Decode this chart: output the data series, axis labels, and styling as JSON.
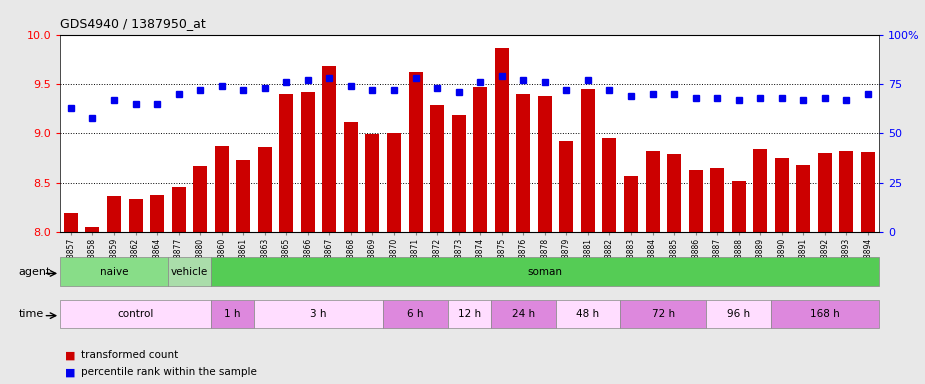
{
  "title": "GDS4940 / 1387950_at",
  "gsm_labels": [
    "GSM338857",
    "GSM338858",
    "GSM338859",
    "GSM338862",
    "GSM338864",
    "GSM338877",
    "GSM338880",
    "GSM338860",
    "GSM338861",
    "GSM338863",
    "GSM338865",
    "GSM338866",
    "GSM338867",
    "GSM338868",
    "GSM338869",
    "GSM338870",
    "GSM338871",
    "GSM338872",
    "GSM338873",
    "GSM338874",
    "GSM338875",
    "GSM338876",
    "GSM338878",
    "GSM338879",
    "GSM338881",
    "GSM338882",
    "GSM338883",
    "GSM338884",
    "GSM338885",
    "GSM338886",
    "GSM338887",
    "GSM338888",
    "GSM338889",
    "GSM338890",
    "GSM338891",
    "GSM338892",
    "GSM338893",
    "GSM338894"
  ],
  "bar_values": [
    8.2,
    8.05,
    8.37,
    8.34,
    8.38,
    8.46,
    8.67,
    8.87,
    8.73,
    8.86,
    9.4,
    9.42,
    9.68,
    9.12,
    8.99,
    9.0,
    9.62,
    9.29,
    9.19,
    9.47,
    9.86,
    9.4,
    9.38,
    8.92,
    9.45,
    8.95,
    8.57,
    8.82,
    8.79,
    8.63,
    8.65,
    8.52,
    8.84,
    8.75,
    8.68,
    8.8,
    8.82,
    8.81
  ],
  "percentile_values": [
    63,
    58,
    67,
    65,
    65,
    70,
    72,
    74,
    72,
    73,
    76,
    77,
    78,
    74,
    72,
    72,
    78,
    73,
    71,
    76,
    79,
    77,
    76,
    72,
    77,
    72,
    69,
    70,
    70,
    68,
    68,
    67,
    68,
    68,
    67,
    68,
    67,
    70
  ],
  "bar_color": "#cc0000",
  "dot_color": "#0000ee",
  "ylim_left": [
    8.0,
    10.0
  ],
  "ylim_right": [
    0,
    100
  ],
  "yticks_left": [
    8.0,
    8.5,
    9.0,
    9.5,
    10.0
  ],
  "yticks_right": [
    0,
    25,
    50,
    75,
    100
  ],
  "ytick_labels_right": [
    "0",
    "25",
    "50",
    "75",
    "100%"
  ],
  "agent_segments": [
    [
      0,
      5,
      "#88dd88",
      "naive"
    ],
    [
      5,
      7,
      "#aaddaa",
      "vehicle"
    ],
    [
      7,
      38,
      "#55cc55",
      "soman"
    ]
  ],
  "time_segments": [
    [
      0,
      7,
      "#ffddff",
      "control"
    ],
    [
      7,
      9,
      "#dd88dd",
      "1 h"
    ],
    [
      9,
      15,
      "#ffddff",
      "3 h"
    ],
    [
      15,
      18,
      "#dd88dd",
      "6 h"
    ],
    [
      18,
      20,
      "#ffddff",
      "12 h"
    ],
    [
      20,
      23,
      "#dd88dd",
      "24 h"
    ],
    [
      23,
      26,
      "#ffddff",
      "48 h"
    ],
    [
      26,
      30,
      "#dd88dd",
      "72 h"
    ],
    [
      30,
      33,
      "#ffddff",
      "96 h"
    ],
    [
      33,
      38,
      "#dd88dd",
      "168 h"
    ]
  ],
  "legend_items": [
    {
      "color": "#cc0000",
      "label": "transformed count"
    },
    {
      "color": "#0000ee",
      "label": "percentile rank within the sample"
    }
  ],
  "bg_color": "#e8e8e8",
  "plot_bg_color": "#ffffff",
  "grid_lines": [
    8.5,
    9.0,
    9.5
  ]
}
